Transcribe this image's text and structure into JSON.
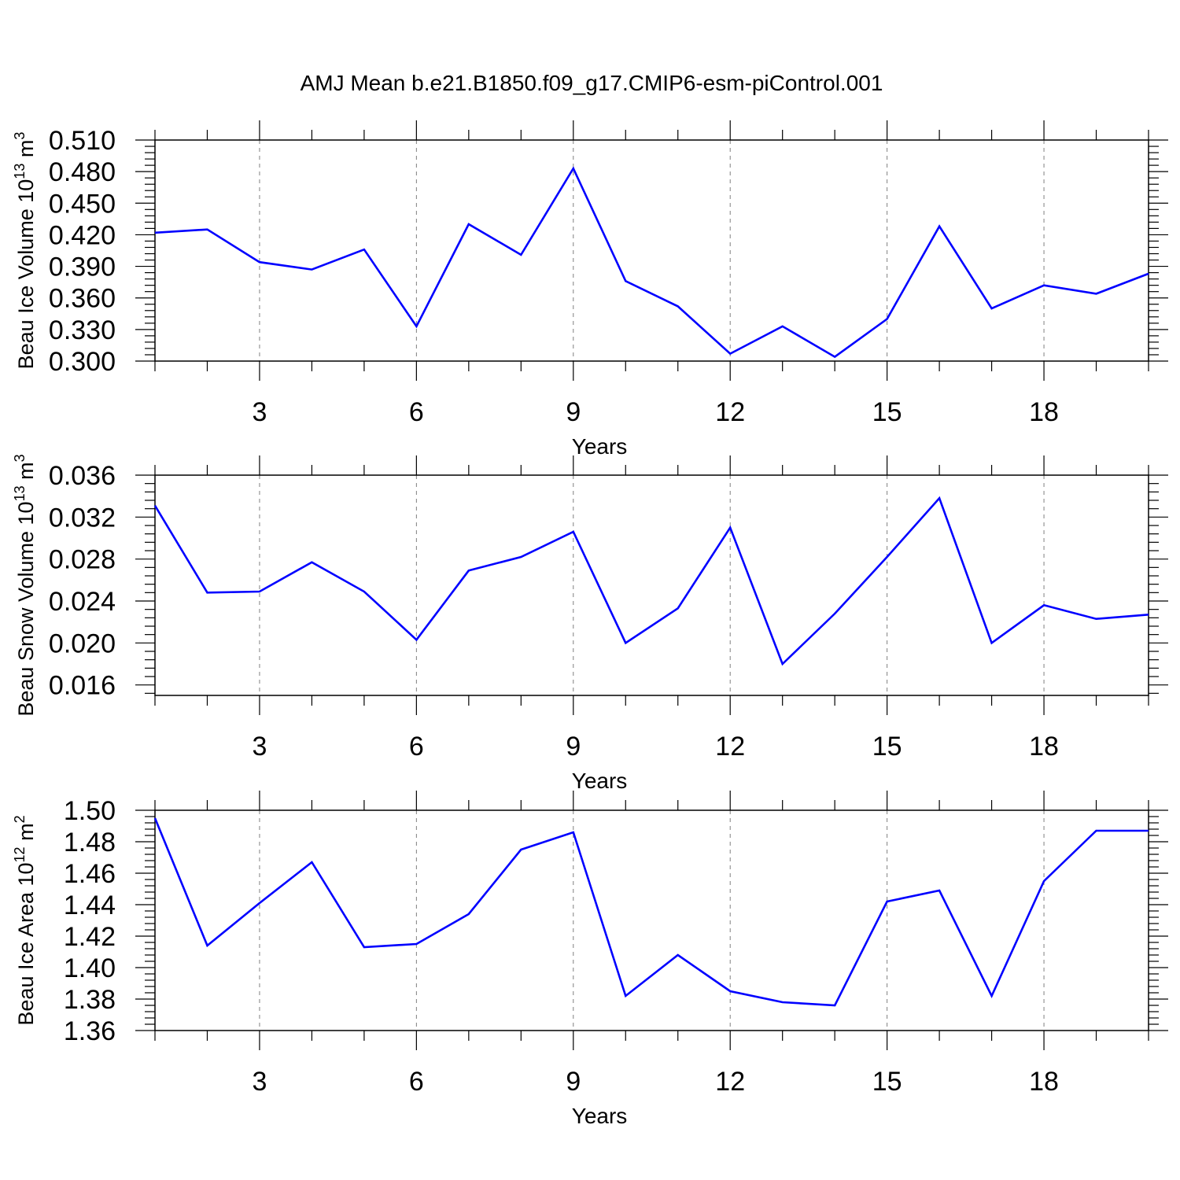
{
  "title": "AMJ Mean b.e21.B1850.f09_g17.CMIP6-esm-piControl.001",
  "colors": {
    "line": "#0000ff",
    "axis": "#000000",
    "grid": "#808080",
    "background": "#ffffff"
  },
  "chart_data": [
    {
      "type": "line",
      "ylabel": {
        "main": "Beau Ice Volume 10",
        "exp": "13",
        "unit": " m",
        "unit_exp": "3"
      },
      "xlabel": "Years",
      "xlim": [
        1,
        20
      ],
      "xticks": [
        3,
        6,
        9,
        12,
        15,
        18
      ],
      "ylim": [
        0.3,
        0.51
      ],
      "yticks": [
        "0.300",
        "0.330",
        "0.360",
        "0.390",
        "0.420",
        "0.450",
        "0.480",
        "0.510"
      ],
      "grid": "vertical-dashed",
      "series": [
        {
          "name": "Beau Ice Volume",
          "x": [
            1,
            2,
            3,
            4,
            5,
            6,
            7,
            8,
            9,
            10,
            11,
            12,
            13,
            14,
            15,
            16,
            17,
            18,
            19,
            20
          ],
          "values": [
            0.422,
            0.425,
            0.394,
            0.387,
            0.406,
            0.333,
            0.43,
            0.401,
            0.483,
            0.376,
            0.352,
            0.307,
            0.333,
            0.304,
            0.34,
            0.428,
            0.35,
            0.372,
            0.364,
            0.383
          ]
        }
      ]
    },
    {
      "type": "line",
      "ylabel": {
        "main": "Beau Snow Volume 10",
        "exp": "13",
        "unit": " m",
        "unit_exp": "3"
      },
      "xlabel": "Years",
      "xlim": [
        1,
        20
      ],
      "xticks": [
        3,
        6,
        9,
        12,
        15,
        18
      ],
      "ylim": [
        0.015,
        0.036
      ],
      "yticks": [
        "0.016",
        "0.020",
        "0.024",
        "0.028",
        "0.032",
        "0.036"
      ],
      "grid": "vertical-dashed",
      "series": [
        {
          "name": "Beau Snow Volume",
          "x": [
            1,
            2,
            3,
            4,
            5,
            6,
            7,
            8,
            9,
            10,
            11,
            12,
            13,
            14,
            15,
            16,
            17,
            18,
            19,
            20
          ],
          "values": [
            0.0331,
            0.0248,
            0.0249,
            0.0277,
            0.0249,
            0.0203,
            0.0269,
            0.0282,
            0.0306,
            0.02,
            0.0233,
            0.031,
            0.018,
            0.0228,
            0.0282,
            0.0338,
            0.02,
            0.0236,
            0.0223,
            0.0227
          ]
        }
      ]
    },
    {
      "type": "line",
      "ylabel": {
        "main": "Beau Ice Area 10",
        "exp": "12",
        "unit": " m",
        "unit_exp": "2"
      },
      "xlabel": "Years",
      "xlim": [
        1,
        20
      ],
      "xticks": [
        3,
        6,
        9,
        12,
        15,
        18
      ],
      "ylim": [
        1.36,
        1.5
      ],
      "yticks": [
        "1.36",
        "1.38",
        "1.40",
        "1.42",
        "1.44",
        "1.46",
        "1.48",
        "1.50"
      ],
      "grid": "vertical-dashed",
      "series": [
        {
          "name": "Beau Ice Area",
          "x": [
            1,
            2,
            3,
            4,
            5,
            6,
            7,
            8,
            9,
            10,
            11,
            12,
            13,
            14,
            15,
            16,
            17,
            18,
            19,
            20
          ],
          "values": [
            1.495,
            1.414,
            1.441,
            1.467,
            1.413,
            1.415,
            1.434,
            1.475,
            1.486,
            1.382,
            1.408,
            1.385,
            1.378,
            1.376,
            1.442,
            1.449,
            1.382,
            1.455,
            1.487,
            1.487
          ]
        }
      ]
    }
  ]
}
